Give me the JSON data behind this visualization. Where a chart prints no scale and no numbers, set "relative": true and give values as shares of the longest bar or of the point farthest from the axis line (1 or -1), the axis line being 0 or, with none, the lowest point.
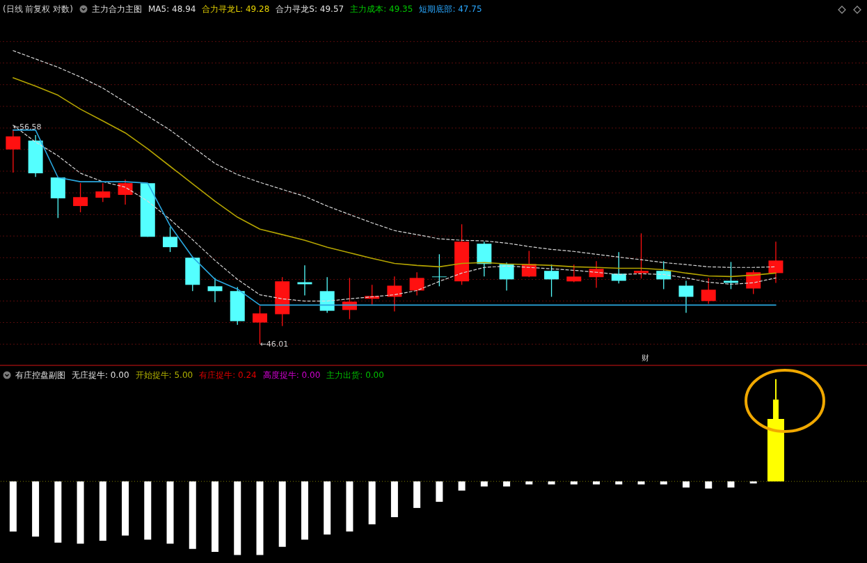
{
  "chart_data": [
    {
      "type": "candlestick",
      "title": "(日线 前复权 对数)",
      "annotations": [
        "主力合力主图",
        "MA5: 48.94",
        "合力寻龙L: 49.28",
        "合力寻龙S: 49.57",
        "主力成本: 49.35",
        "短期底部: 47.75",
        "←56.58",
        "←46.01",
        "财"
      ],
      "categories": [
        null,
        null,
        null,
        null,
        null,
        null,
        null,
        null,
        null,
        null,
        null,
        null,
        null,
        null,
        null,
        null,
        null,
        null,
        null,
        null,
        null,
        null,
        null,
        null,
        null,
        null,
        null,
        null,
        null,
        null,
        null,
        null,
        null,
        null,
        null
      ],
      "ohlc": [
        [
          55.62,
          56.58,
          54.48,
          56.27
        ],
        [
          56.06,
          56.34,
          54.27,
          54.45
        ],
        [
          54.24,
          54.24,
          52.24,
          53.21
        ],
        [
          52.83,
          53.96,
          52.52,
          53.27
        ],
        [
          53.24,
          53.96,
          53.03,
          53.55
        ],
        [
          53.38,
          54.14,
          52.9,
          53.96
        ],
        [
          53.96,
          53.96,
          51.31,
          51.31
        ],
        [
          51.31,
          51.79,
          50.56,
          50.8
        ],
        [
          50.28,
          50.28,
          48.63,
          48.94
        ],
        [
          48.87,
          49.28,
          48.08,
          48.63
        ],
        [
          48.63,
          48.83,
          46.97,
          47.15
        ],
        [
          47.08,
          47.9,
          46.01,
          47.53
        ],
        [
          47.49,
          49.32,
          46.91,
          49.11
        ],
        [
          49.07,
          49.9,
          48.42,
          48.97
        ],
        [
          48.63,
          49.32,
          47.56,
          47.66
        ],
        [
          47.7,
          49.28,
          47.25,
          48.11
        ],
        [
          48.25,
          48.94,
          47.97,
          48.39
        ],
        [
          48.35,
          49.35,
          47.63,
          48.9
        ],
        [
          48.66,
          49.56,
          48.42,
          49.28
        ],
        [
          49.35,
          50.45,
          48.87,
          49.32
        ],
        [
          49.11,
          51.93,
          48.94,
          51.07
        ],
        [
          50.97,
          51.07,
          49.35,
          49.97
        ],
        [
          49.97,
          50.04,
          48.66,
          49.21
        ],
        [
          49.35,
          50.62,
          49.32,
          49.97
        ],
        [
          49.63,
          49.94,
          48.35,
          49.21
        ],
        [
          49.11,
          49.94,
          49.07,
          49.35
        ],
        [
          49.32,
          50.11,
          48.8,
          49.73
        ],
        [
          49.49,
          50.56,
          49.01,
          49.14
        ],
        [
          49.52,
          51.48,
          49.25,
          49.63
        ],
        [
          49.63,
          50.11,
          48.73,
          49.21
        ],
        [
          48.9,
          49.14,
          47.56,
          48.35
        ],
        [
          48.14,
          49.28,
          48.01,
          48.7
        ],
        [
          49.14,
          50.07,
          48.73,
          49.04
        ],
        [
          48.76,
          49.66,
          48.49,
          49.56
        ],
        [
          49.52,
          51.07,
          49.04,
          50.14
        ]
      ],
      "colors": [
        "#ff1010",
        "#54ffff",
        "#54ffff",
        "#ff1010",
        "#ff1010",
        "#ff1010",
        "#54ffff",
        "#54ffff",
        "#54ffff",
        "#54ffff",
        "#54ffff",
        "#ff1010",
        "#ff1010",
        "#54ffff",
        "#54ffff",
        "#ff1010",
        "#ff1010",
        "#ff1010",
        "#ff1010",
        "#54ffff",
        "#ff1010",
        "#54ffff",
        "#54ffff",
        "#ff1010",
        "#54ffff",
        "#ff1010",
        "#ff1010",
        "#54ffff",
        "#ff1010",
        "#54ffff",
        "#54ffff",
        "#ff1010",
        "#54ffff",
        "#ff1010",
        "#ff1010"
      ],
      "series": [
        {
          "type": "line",
          "color": "#d8d8d8",
          "line_style": "dashed",
          "values": [
            60.5,
            60.09,
            59.68,
            59.2,
            58.65,
            57.96,
            57.27,
            56.58,
            55.75,
            54.93,
            54.38,
            54.0,
            53.65,
            53.31,
            52.83,
            52.41,
            52.0,
            51.62,
            51.42,
            51.21,
            51.14,
            51.11,
            51.0,
            50.83,
            50.69,
            50.59,
            50.45,
            50.31,
            50.18,
            50.04,
            49.94,
            49.83,
            49.8,
            49.8,
            49.83
          ]
        },
        {
          "type": "line",
          "color": "#b4a400",
          "line_style": "solid",
          "values": [
            59.16,
            58.75,
            58.3,
            57.61,
            57.03,
            56.44,
            55.65,
            54.79,
            53.93,
            53.07,
            52.28,
            51.69,
            51.42,
            51.14,
            50.8,
            50.52,
            50.25,
            50.0,
            49.9,
            49.83,
            50.0,
            50.04,
            49.97,
            49.94,
            49.9,
            49.83,
            49.8,
            49.76,
            49.76,
            49.69,
            49.52,
            49.38,
            49.35,
            49.42,
            49.52
          ]
        },
        {
          "type": "line",
          "color": "#d8d8d8",
          "line_style": "dashed",
          "values": [
            56.82,
            55.99,
            55.31,
            54.45,
            54.03,
            53.76,
            53.07,
            52.17,
            51.17,
            50.14,
            49.21,
            48.45,
            48.25,
            48.14,
            48.14,
            48.25,
            48.35,
            48.45,
            48.66,
            49.11,
            49.52,
            49.8,
            49.87,
            49.8,
            49.73,
            49.66,
            49.56,
            49.45,
            49.49,
            49.45,
            49.28,
            49.07,
            48.97,
            49.04,
            49.28
          ]
        },
        {
          "type": "line",
          "color": "#2aa8e0",
          "line_style": "solid",
          "values": [
            56.58,
            56.58,
            54.24,
            54.03,
            54.03,
            54.03,
            53.96,
            51.86,
            50.31,
            49.21,
            48.73,
            47.94,
            47.94,
            47.94,
            47.94,
            47.94,
            47.94,
            47.94,
            47.94,
            47.94,
            47.94,
            47.94,
            47.94,
            47.94,
            47.94,
            47.94,
            47.94,
            47.94,
            47.94,
            47.94,
            47.94,
            47.94,
            47.94,
            47.94,
            47.94
          ]
        }
      ],
      "ylim": [
        45,
        63
      ],
      "yticks": [
        {
          "value": 60.95,
          "label": null
        },
        {
          "value": 59.89,
          "label": null
        },
        {
          "value": 58.82,
          "label": null
        },
        {
          "value": 57.75,
          "label": null
        },
        {
          "value": 56.68,
          "label": null
        },
        {
          "value": 55.62,
          "label": null
        },
        {
          "value": 54.55,
          "label": null
        },
        {
          "value": 53.48,
          "label": null
        },
        {
          "value": 52.41,
          "label": null
        },
        {
          "value": 51.35,
          "label": null
        },
        {
          "value": 50.28,
          "label": null
        },
        {
          "value": 49.21,
          "label": null
        },
        {
          "value": 48.14,
          "label": null
        },
        {
          "value": 47.08,
          "label": null
        },
        {
          "value": 46.01,
          "label": null
        }
      ],
      "grid": "y"
    },
    {
      "type": "bar",
      "relative": true,
      "stacked": true,
      "title": "有庄控盘副图",
      "annotations": [
        "无庄捉牛: 0.00",
        "开始捉牛: 5.00",
        "有庄捉牛: 0.24",
        "高度捉牛: 0.00",
        "主力出货: 0.00"
      ],
      "categories": [
        null,
        null,
        null,
        null,
        null,
        null,
        null,
        null,
        null,
        null,
        null,
        null,
        null,
        null,
        null,
        null,
        null,
        null,
        null,
        null,
        null,
        null,
        null,
        null,
        null,
        null,
        null,
        null,
        null,
        null,
        null,
        null,
        null,
        null,
        null
      ],
      "series": [
        {
          "color": "#ffffff",
          "values": [
            -0.49,
            -0.54,
            -0.6,
            -0.61,
            -0.58,
            -0.53,
            -0.57,
            -0.61,
            -0.66,
            -0.69,
            -0.72,
            -0.72,
            -0.64,
            -0.57,
            -0.52,
            -0.49,
            -0.42,
            -0.35,
            -0.26,
            -0.2,
            -0.09,
            -0.05,
            -0.05,
            -0.03,
            -0.03,
            -0.03,
            -0.03,
            -0.03,
            -0.03,
            -0.03,
            -0.06,
            -0.07,
            -0.06,
            -0.02,
            null
          ]
        },
        {
          "color": "#ffff00",
          "values": [
            null,
            null,
            null,
            null,
            null,
            null,
            null,
            null,
            null,
            null,
            null,
            null,
            null,
            null,
            null,
            null,
            null,
            null,
            null,
            null,
            null,
            null,
            null,
            null,
            null,
            null,
            null,
            null,
            null,
            null,
            null,
            null,
            null,
            null,
            0.61
          ]
        },
        {
          "color": "#ffff00",
          "values": [
            null,
            null,
            null,
            null,
            null,
            null,
            null,
            null,
            null,
            null,
            null,
            null,
            null,
            null,
            null,
            null,
            null,
            null,
            null,
            null,
            null,
            null,
            null,
            null,
            null,
            null,
            null,
            null,
            null,
            null,
            null,
            null,
            null,
            null,
            0.19
          ]
        },
        {
          "color": "#ffff00",
          "values": [
            null,
            null,
            null,
            null,
            null,
            null,
            null,
            null,
            null,
            null,
            null,
            null,
            null,
            null,
            null,
            null,
            null,
            null,
            null,
            null,
            null,
            null,
            null,
            null,
            null,
            null,
            null,
            null,
            null,
            null,
            null,
            null,
            null,
            null,
            0.2
          ]
        }
      ],
      "ref_lines": [
        {
          "axis": "y",
          "value": 0,
          "color": "#7a7a00",
          "line_style": "dotted"
        }
      ]
    }
  ]
}
